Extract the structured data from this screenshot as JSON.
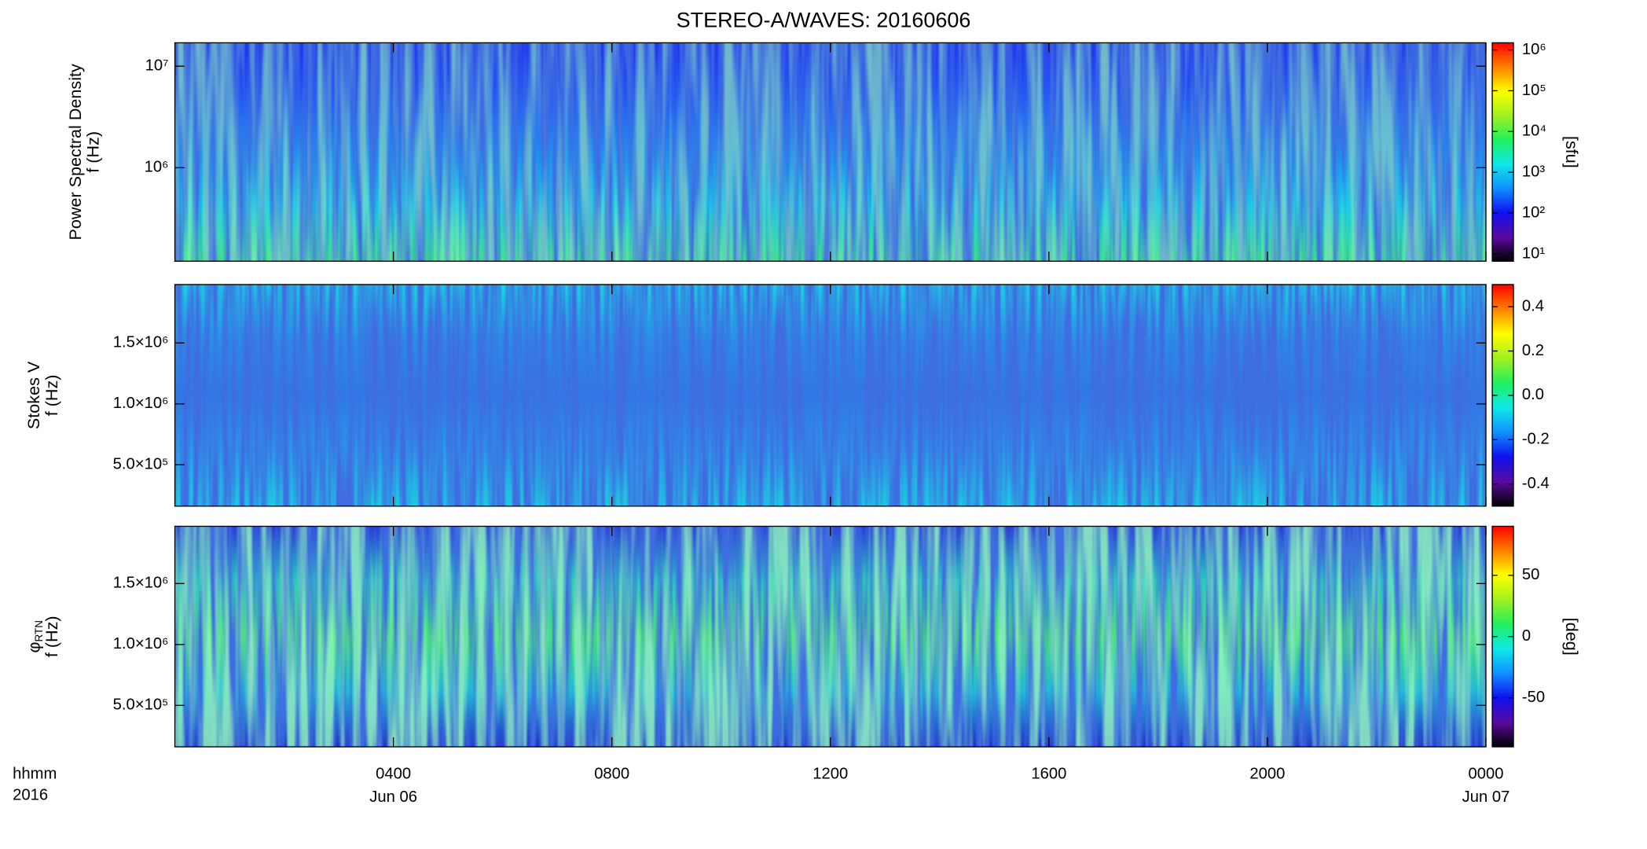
{
  "chart_data": [
    {
      "type": "spectrogram",
      "title": "STEREO-A/WAVES: 20160606",
      "ylabel": [
        "Power Spectral Density",
        "f (Hz)"
      ],
      "log_y": true,
      "ylim": [
        120000,
        17000000
      ],
      "yticks": [
        {
          "value": 1000000,
          "label": "10⁶"
        },
        {
          "value": 10000000,
          "label": "10⁷"
        }
      ],
      "colorbar_label": "[sfu]",
      "log_c": true,
      "clim": [
        6.6,
        1500000
      ],
      "cticks": [
        {
          "value": 10,
          "label": "10¹"
        },
        {
          "value": 100,
          "label": "10²"
        },
        {
          "value": 1000,
          "label": "10³"
        },
        {
          "value": 10000,
          "label": "10⁴"
        },
        {
          "value": 100000,
          "label": "10⁵"
        },
        {
          "value": 1000000,
          "label": "10⁶"
        }
      ],
      "colors": [
        "#1f34ee",
        "#2459f2",
        "#1f8ef0",
        "#1bc6e6",
        "#3ee08a"
      ]
    },
    {
      "type": "spectrogram",
      "ylabel": [
        "Stokes V",
        "f (Hz)"
      ],
      "log_y": false,
      "ylim": [
        160000,
        1980000
      ],
      "yticks": [
        {
          "value": 500000,
          "label": "5.0×10⁵"
        },
        {
          "value": 1000000,
          "label": "1.0×10⁶"
        },
        {
          "value": 1500000,
          "label": "1.5×10⁶"
        }
      ],
      "log_c": false,
      "clim": [
        -0.5,
        0.5
      ],
      "cticks": [
        -0.4,
        -0.2,
        {
          "value": 0,
          "label": "0.0"
        },
        0.2,
        0.4
      ],
      "colors": [
        "#19d2e2",
        "#2a8de8",
        "#2f78e6",
        "#2a98ea",
        "#1ec8e0"
      ]
    },
    {
      "type": "spectrogram",
      "ylabel": [
        "φ",
        "f (Hz)"
      ],
      "ylabel_sub": "RTN",
      "log_y": false,
      "ylim": [
        160000,
        1970000
      ],
      "yticks": [
        {
          "value": 500000,
          "label": "5.0×10⁵"
        },
        {
          "value": 1000000,
          "label": "1.0×10⁶"
        },
        {
          "value": 1500000,
          "label": "1.5×10⁶"
        }
      ],
      "colorbar_label": "[deg]",
      "log_c": false,
      "clim": [
        -90,
        90
      ],
      "cticks": [
        -50,
        0,
        50
      ],
      "colors": [
        "#2a3ad8",
        "#2cc8c0",
        "#48e07a",
        "#22b8d8",
        "#2030c8"
      ],
      "xlim": [
        0,
        24
      ],
      "xticks": [
        {
          "value": 4,
          "label": "0400"
        },
        {
          "value": 8,
          "label": "0800"
        },
        {
          "value": 12,
          "label": "1200"
        },
        {
          "value": 16,
          "label": "1600"
        },
        {
          "value": 20,
          "label": "2000"
        },
        {
          "value": 24,
          "label": "0000"
        }
      ],
      "date_labels": [
        {
          "value": 4,
          "label": "Jun 06"
        },
        {
          "value": 24,
          "label": "Jun 07"
        }
      ],
      "corner_labels": [
        "hhmm",
        "2016"
      ],
      "colormap": [
        "#000000",
        "#5a0aa0",
        "#1010f0",
        "#1090ff",
        "#10e8e8",
        "#20f060",
        "#a0f020",
        "#ffff00",
        "#ff8000",
        "#ff0000"
      ]
    }
  ]
}
